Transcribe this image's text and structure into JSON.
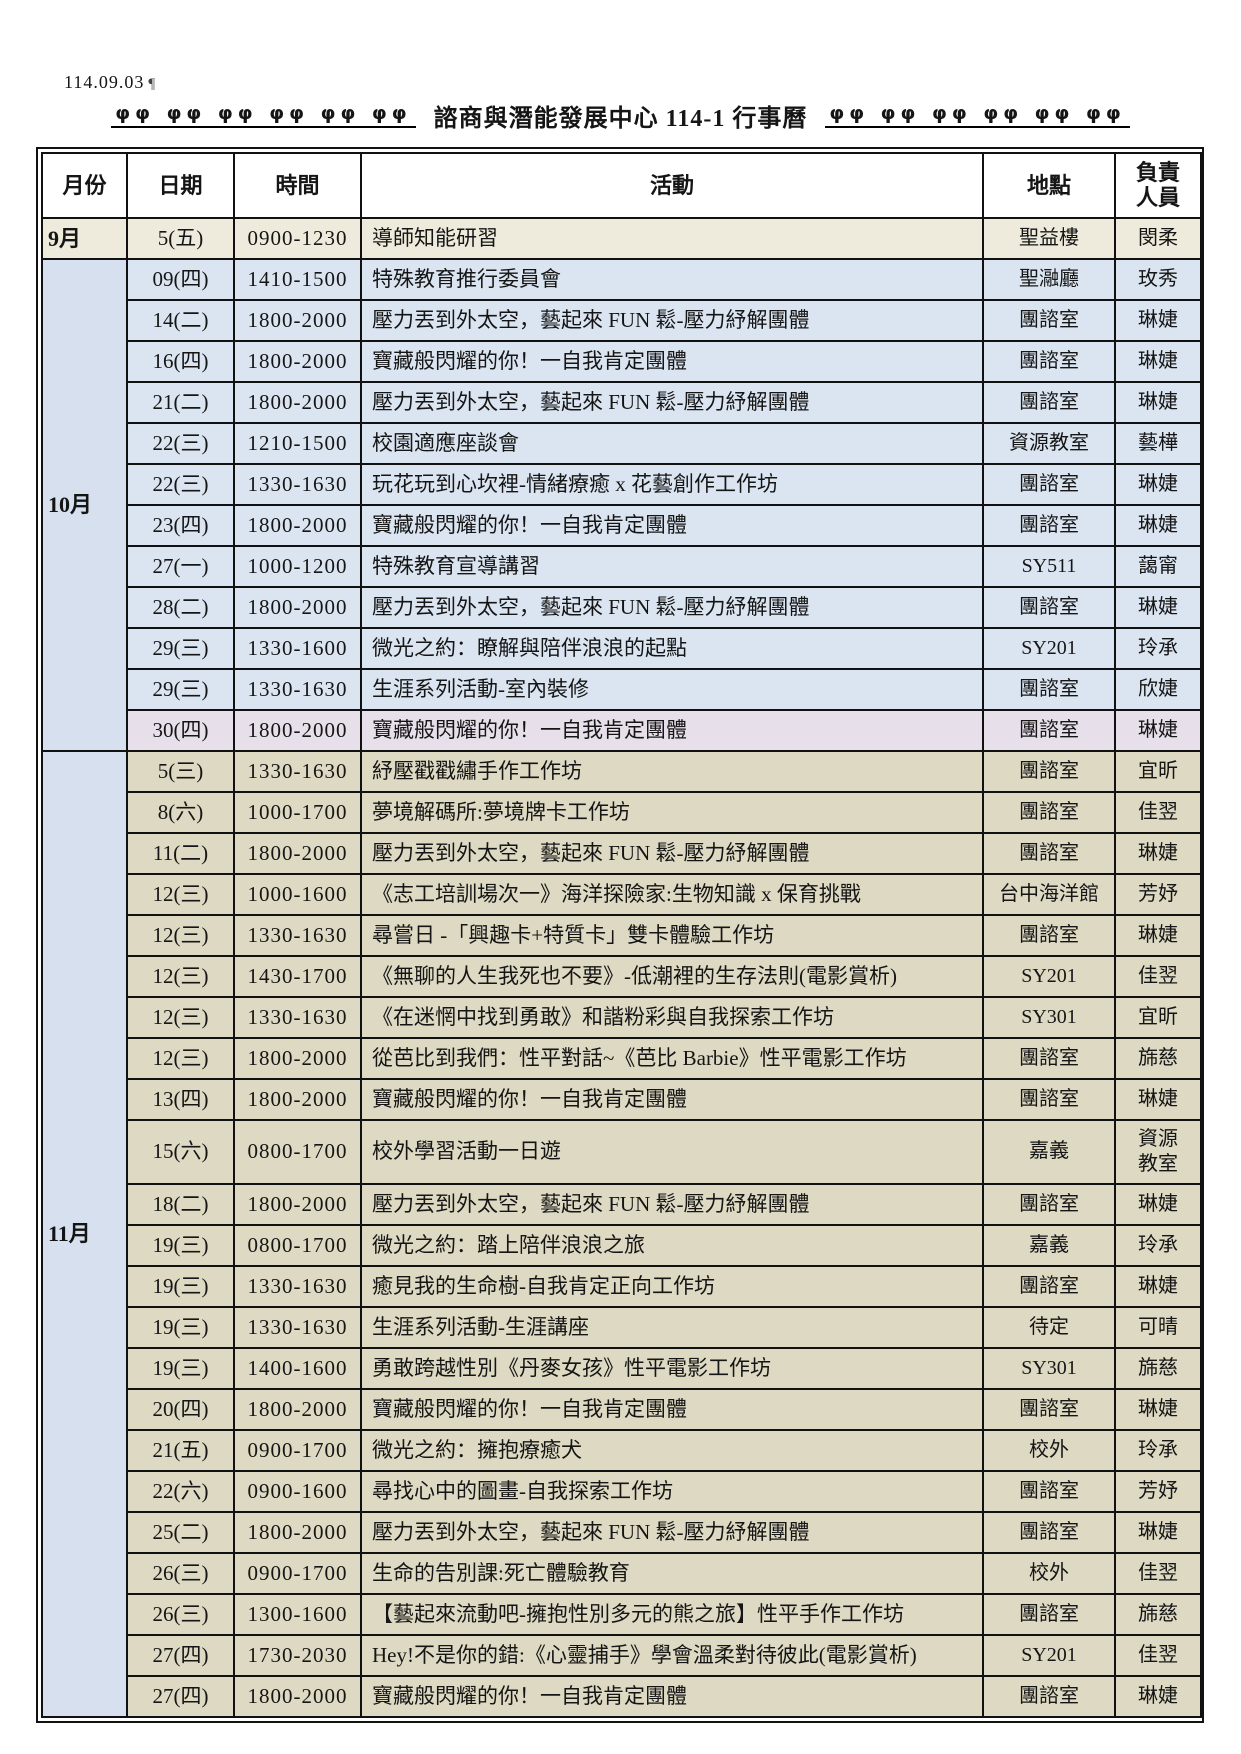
{
  "page": {
    "date_note": "114.09.03",
    "pilcrow": "¶",
    "title": "諮商與潛能發展中心 114-1 行事曆",
    "flourish": "φφ φφ φφ φφ φφ φφ"
  },
  "colors": {
    "sep_row": "#efebdc",
    "oct_row": "#dbe5f1",
    "nov_row": "#ddd9c2",
    "lavender_row": "#e7e0eb",
    "month_blue": "#d7e0ee",
    "border": "#111111"
  },
  "table": {
    "headers": [
      "月份",
      "日期",
      "時間",
      "活動",
      "地點",
      "負責\n人員"
    ],
    "months": [
      {
        "label": "9月",
        "theme": "sep",
        "rows": [
          {
            "date": "5(五)",
            "time": "0900-1230",
            "activity": "導師知能研習",
            "location": "聖益樓",
            "person": "閔柔"
          }
        ]
      },
      {
        "label": "10月",
        "theme": "oct",
        "rows": [
          {
            "date": "09(四)",
            "time": "1410-1500",
            "activity": "特殊教育推行委員會",
            "location": "聖瀜廳",
            "person": "玫秀"
          },
          {
            "date": "14(二)",
            "time": "1800-2000",
            "activity": "壓力丟到外太空，藝起來 FUN 鬆-壓力紓解團體",
            "location": "團諮室",
            "person": "琳婕"
          },
          {
            "date": "16(四)",
            "time": "1800-2000",
            "activity": "寶藏般閃耀的你！一自我肯定團體",
            "location": "團諮室",
            "person": "琳婕"
          },
          {
            "date": "21(二)",
            "time": "1800-2000",
            "activity": "壓力丟到外太空，藝起來 FUN 鬆-壓力紓解團體",
            "location": "團諮室",
            "person": "琳婕"
          },
          {
            "date": "22(三)",
            "time": "1210-1500",
            "activity": "校園適應座談會",
            "location": "資源教室",
            "person": "藝樺"
          },
          {
            "date": "22(三)",
            "time": "1330-1630",
            "activity": "玩花玩到心坎裡-情緒療癒 x 花藝創作工作坊",
            "location": "團諮室",
            "person": "琳婕"
          },
          {
            "date": "23(四)",
            "time": "1800-2000",
            "activity": "寶藏般閃耀的你！一自我肯定團體",
            "location": "團諮室",
            "person": "琳婕"
          },
          {
            "date": "27(一)",
            "time": "1000-1200",
            "activity": "特殊教育宣導講習",
            "location": "SY511",
            "person": "藹甯"
          },
          {
            "date": "28(二)",
            "time": "1800-2000",
            "activity": "壓力丟到外太空，藝起來 FUN 鬆-壓力紓解團體",
            "location": "團諮室",
            "person": "琳婕"
          },
          {
            "date": "29(三)",
            "time": "1330-1600",
            "activity": "微光之約：瞭解與陪伴浪浪的起點",
            "location": "SY201",
            "person": "玲承"
          },
          {
            "date": "29(三)",
            "time": "1330-1630",
            "activity": "生涯系列活動-室內裝修",
            "location": "團諮室",
            "person": "欣婕"
          },
          {
            "date": "30(四)",
            "time": "1800-2000",
            "activity": "寶藏般閃耀的你！一自我肯定團體",
            "location": "團諮室",
            "person": "琳婕",
            "variant": "lavender"
          }
        ]
      },
      {
        "label": "11月",
        "theme": "nov",
        "rows": [
          {
            "date": "5(三)",
            "time": "1330-1630",
            "activity": "紓壓戳戳繡手作工作坊",
            "location": "團諮室",
            "person": "宜昕"
          },
          {
            "date": "8(六)",
            "time": "1000-1700",
            "activity": "夢境解碼所:夢境牌卡工作坊",
            "location": "團諮室",
            "person": "佳翌"
          },
          {
            "date": "11(二)",
            "time": "1800-2000",
            "activity": "壓力丟到外太空，藝起來 FUN 鬆-壓力紓解團體",
            "location": "團諮室",
            "person": "琳婕"
          },
          {
            "date": "12(三)",
            "time": "1000-1600",
            "activity": "《志工培訓場次一》海洋探險家:生物知識 x 保育挑戰",
            "location": "台中海洋館",
            "person": "芳妤"
          },
          {
            "date": "12(三)",
            "time": "1330-1630",
            "activity": "尋嘗日 -「興趣卡+特質卡」雙卡體驗工作坊",
            "location": "團諮室",
            "person": "琳婕"
          },
          {
            "date": "12(三)",
            "time": "1430-1700",
            "activity": "《無聊的人生我死也不要》-低潮裡的生存法則(電影賞析)",
            "location": "SY201",
            "person": "佳翌"
          },
          {
            "date": "12(三)",
            "time": "1330-1630",
            "activity": "《在迷惘中找到勇敢》和諧粉彩與自我探索工作坊",
            "location": "SY301",
            "person": "宜昕"
          },
          {
            "date": "12(三)",
            "time": "1800-2000",
            "activity": "從芭比到我們：性平對話~《芭比 Barbie》性平電影工作坊",
            "location": "團諮室",
            "person": "旆慈"
          },
          {
            "date": "13(四)",
            "time": "1800-2000",
            "activity": "寶藏般閃耀的你！一自我肯定團體",
            "location": "團諮室",
            "person": "琳婕"
          },
          {
            "date": "15(六)",
            "time": "0800-1700",
            "activity": "校外學習活動一日遊",
            "location": "嘉義",
            "person": "資源\n教室"
          },
          {
            "date": "18(二)",
            "time": "1800-2000",
            "activity": "壓力丟到外太空，藝起來 FUN 鬆-壓力紓解團體",
            "location": "團諮室",
            "person": "琳婕"
          },
          {
            "date": "19(三)",
            "time": "0800-1700",
            "activity": "微光之約：踏上陪伴浪浪之旅",
            "location": "嘉義",
            "person": "玲承"
          },
          {
            "date": "19(三)",
            "time": "1330-1630",
            "activity": "癒見我的生命樹-自我肯定正向工作坊",
            "location": "團諮室",
            "person": "琳婕"
          },
          {
            "date": "19(三)",
            "time": "1330-1630",
            "activity": "生涯系列活動-生涯講座",
            "location": "待定",
            "person": "可晴"
          },
          {
            "date": "19(三)",
            "time": "1400-1600",
            "activity": "勇敢跨越性別《丹麥女孩》性平電影工作坊",
            "location": "SY301",
            "person": "旆慈"
          },
          {
            "date": "20(四)",
            "time": "1800-2000",
            "activity": "寶藏般閃耀的你！一自我肯定團體",
            "location": "團諮室",
            "person": "琳婕"
          },
          {
            "date": "21(五)",
            "time": "0900-1700",
            "activity": "微光之約：擁抱療癒犬",
            "location": "校外",
            "person": "玲承"
          },
          {
            "date": "22(六)",
            "time": "0900-1600",
            "activity": "尋找心中的圖畫-自我探索工作坊",
            "location": "團諮室",
            "person": "芳妤"
          },
          {
            "date": "25(二)",
            "time": "1800-2000",
            "activity": "壓力丟到外太空，藝起來 FUN 鬆-壓力紓解團體",
            "location": "團諮室",
            "person": "琳婕"
          },
          {
            "date": "26(三)",
            "time": "0900-1700",
            "activity": "生命的告別課:死亡體驗教育",
            "location": "校外",
            "person": "佳翌"
          },
          {
            "date": "26(三)",
            "time": "1300-1600",
            "activity": "【藝起來流動吧-擁抱性別多元的熊之旅】性平手作工作坊",
            "location": "團諮室",
            "person": "旆慈"
          },
          {
            "date": "27(四)",
            "time": "1730-2030",
            "activity": "Hey!不是你的錯:《心靈捕手》學會溫柔對待彼此(電影賞析)",
            "location": "SY201",
            "person": "佳翌"
          },
          {
            "date": "27(四)",
            "time": "1800-2000",
            "activity": "寶藏般閃耀的你！一自我肯定團體",
            "location": "團諮室",
            "person": "琳婕"
          }
        ]
      }
    ]
  }
}
